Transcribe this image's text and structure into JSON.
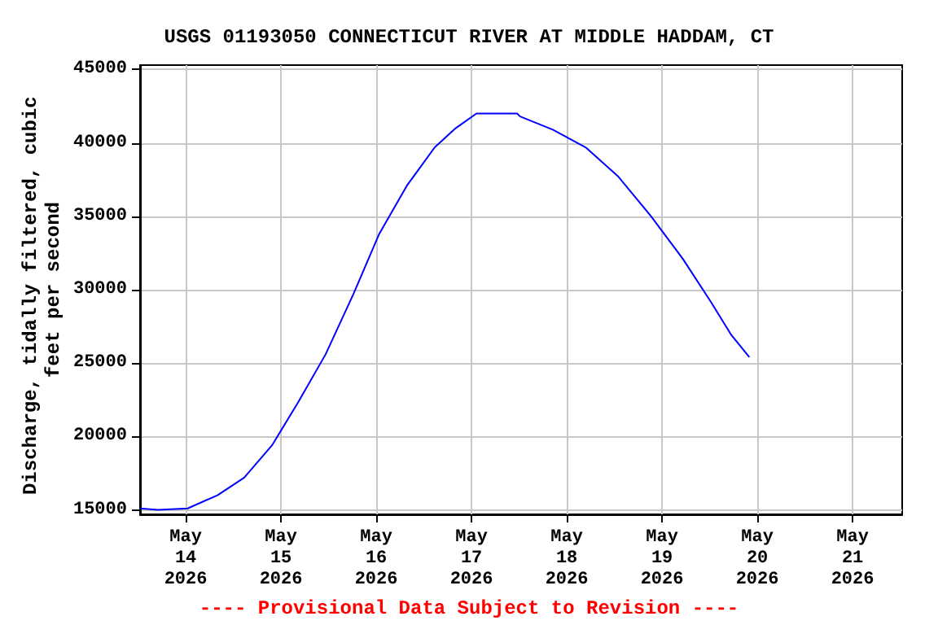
{
  "chart_data": {
    "type": "line",
    "title": "USGS 01193050 CONNECTICUT RIVER AT MIDDLE HADDAM, CT",
    "ylabel": "Discharge, tidally filtered, cubic feet per second",
    "annotations": [
      "---- Provisional Data Subject to Revision ----"
    ],
    "x": [
      "2026-05-13T12:30",
      "2026-05-13T17:00",
      "2026-05-14T00:30",
      "2026-05-14T08:00",
      "2026-05-14T14:45",
      "2026-05-14T21:45",
      "2026-05-15T04:15",
      "2026-05-15T11:15",
      "2026-05-15T18:15",
      "2026-05-16T00:45",
      "2026-05-16T07:45",
      "2026-05-16T14:45",
      "2026-05-16T20:00",
      "2026-05-17T01:15",
      "2026-05-17T11:30",
      "2026-05-17T12:15",
      "2026-05-17T20:30",
      "2026-05-18T04:45",
      "2026-05-18T13:00",
      "2026-05-18T21:15",
      "2026-05-19T05:15",
      "2026-05-19T12:15",
      "2026-05-19T17:30",
      "2026-05-19T22:00"
    ],
    "series": [
      {
        "color": "#0000ff",
        "values": [
          15100,
          15000,
          15100,
          16000,
          17200,
          19400,
          22300,
          25600,
          29700,
          33800,
          37100,
          39700,
          41000,
          42000,
          42000,
          41800,
          40900,
          39700,
          37700,
          35000,
          32100,
          29200,
          26900,
          25400
        ]
      }
    ],
    "xlim": [
      "2026-05-13T12:30",
      "2026-05-21T12:30"
    ],
    "xticks": [
      {
        "value": "2026-05-14",
        "label": "May\n14\n2026"
      },
      {
        "value": "2026-05-15",
        "label": "May\n15\n2026"
      },
      {
        "value": "2026-05-16",
        "label": "May\n16\n2026"
      },
      {
        "value": "2026-05-17",
        "label": "May\n17\n2026"
      },
      {
        "value": "2026-05-18",
        "label": "May\n18\n2026"
      },
      {
        "value": "2026-05-19",
        "label": "May\n19\n2026"
      },
      {
        "value": "2026-05-20",
        "label": "May\n20\n2026"
      },
      {
        "value": "2026-05-21",
        "label": "May\n21\n2026"
      }
    ],
    "ylim": [
      14700,
      45300
    ],
    "yticks": [
      15000,
      20000,
      25000,
      30000,
      35000,
      40000,
      45000
    ],
    "grid": true,
    "marker": "none",
    "line_style": "solid"
  }
}
